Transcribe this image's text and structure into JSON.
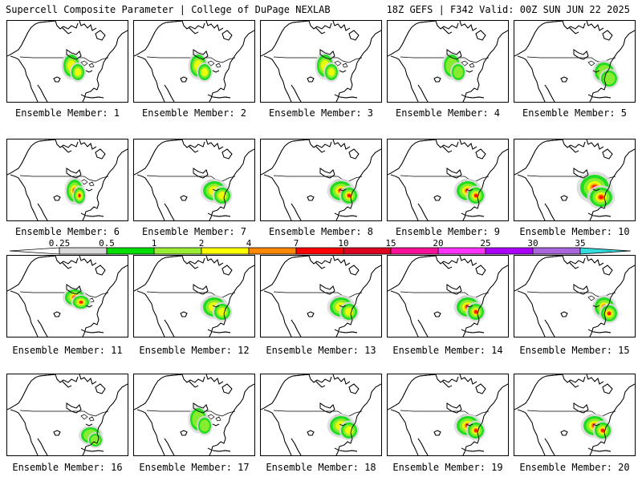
{
  "header": {
    "title_left": "Supercell Composite Parameter | College of DuPage NEXLAB",
    "title_right": "18Z GEFS | F342 Valid: 00Z SUN JUN 22 2025"
  },
  "legend": {
    "ticks": [
      "0.25",
      "0.5",
      "1",
      "2",
      "4",
      "7",
      "10",
      "15",
      "20",
      "25",
      "30",
      "35"
    ],
    "colors": [
      "#d9d9d9",
      "#00dd00",
      "#99ee33",
      "#ffff00",
      "#ff8800",
      "#ff0000",
      "#dd0022",
      "#ff1199",
      "#ff33ff",
      "#aa00ff",
      "#aa66dd",
      "#33dddd"
    ]
  },
  "panels": [
    {
      "label": "Ensemble Member: 1",
      "intensity": "moderate",
      "focus": "plains"
    },
    {
      "label": "Ensemble Member: 2",
      "intensity": "moderate",
      "focus": "plains"
    },
    {
      "label": "Ensemble Member: 3",
      "intensity": "moderate",
      "focus": "plains"
    },
    {
      "label": "Ensemble Member: 4",
      "intensity": "weak",
      "focus": "plains"
    },
    {
      "label": "Ensemble Member: 5",
      "intensity": "weak",
      "focus": "east"
    },
    {
      "label": "Ensemble Member: 6",
      "intensity": "strong",
      "focus": "southern-plains"
    },
    {
      "label": "Ensemble Member: 7",
      "intensity": "moderate",
      "focus": "midwest"
    },
    {
      "label": "Ensemble Member: 8",
      "intensity": "strong",
      "focus": "midwest"
    },
    {
      "label": "Ensemble Member: 9",
      "intensity": "strong",
      "focus": "midwest"
    },
    {
      "label": "Ensemble Member: 10",
      "intensity": "strong",
      "focus": "midwest-wide"
    },
    {
      "label": "Ensemble Member: 11",
      "intensity": "strong",
      "focus": "northern-plains"
    },
    {
      "label": "Ensemble Member: 12",
      "intensity": "moderate",
      "focus": "midwest"
    },
    {
      "label": "Ensemble Member: 13",
      "intensity": "moderate",
      "focus": "midwest"
    },
    {
      "label": "Ensemble Member: 14",
      "intensity": "strong",
      "focus": "midwest"
    },
    {
      "label": "Ensemble Member: 15",
      "intensity": "strong",
      "focus": "east"
    },
    {
      "label": "Ensemble Member: 16",
      "intensity": "weak",
      "focus": "southeast"
    },
    {
      "label": "Ensemble Member: 17",
      "intensity": "weak",
      "focus": "plains"
    },
    {
      "label": "Ensemble Member: 18",
      "intensity": "moderate",
      "focus": "midwest"
    },
    {
      "label": "Ensemble Member: 19",
      "intensity": "strong",
      "focus": "midwest"
    },
    {
      "label": "Ensemble Member: 20",
      "intensity": "strong",
      "focus": "midwest"
    }
  ]
}
